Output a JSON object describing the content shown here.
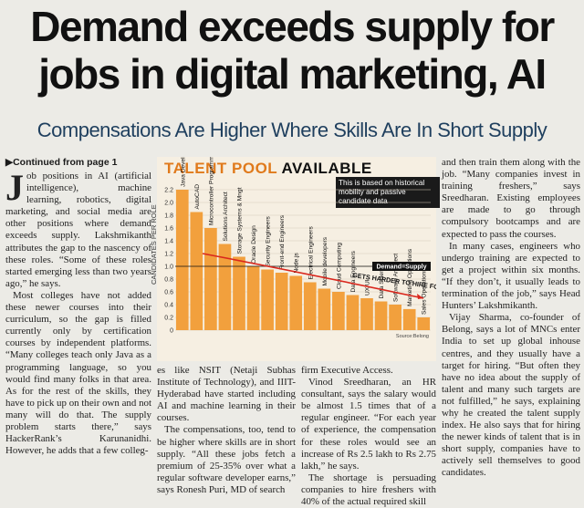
{
  "headline": {
    "line1": "Demand exceeds supply for",
    "line2": "jobs in digital marketing, AI"
  },
  "subhead": "Compensations Are Higher Where Skills Are In Short Supply",
  "continued": "▶Continued from page 1",
  "col1": {
    "dropcap": "J",
    "p1": "ob positions in AI (artificial intelligence), machine learning, robotics, digital marketing, and social media are other positions where demand exceeds supply. Lakshmikanth attributes the gap to the nascency of these roles. “Some of these roles started emerging less than two years ago,” he says.",
    "p2": "Most colleges have not added these newer courses into their curriculum, so the gap is filled currently only by certification courses by independent platforms. “Many colleges teach only Java as a programming language, so you would find many folks in that area. As for the rest of the skills, they have to pick up on their own and not many will do that. The supply problem starts there,” says HackerRank’s Karunanidhi. However, he adds that a few colleg-"
  },
  "col2": {
    "p1": "es like NSIT (Netaji Subhas Institute of Technology), and IIIT- Hyderabad have started including AI and machine learning in their courses.",
    "p2": "The compensations, too, tend to be higher where skills are in short supply. “All these jobs fetch a premium of 25-35% over what a regular software developer earns,” says Ronesh Puri, MD of search"
  },
  "col3": {
    "p1": "firm Executive Access.",
    "p2": "Vinod Sreedharan, an HR consultant, says the salary would be almost 1.5 times that of a regular engineer. “For each year of experience, the compensation for these roles would see an increase of Rs 2.5 lakh to Rs 2.75 lakh,” he says.",
    "p3": "The shortage is persuading companies to hire freshers with 40% of the actual required skill"
  },
  "col4": {
    "p1": "and then train them along with the job. “Many companies invest in training freshers,” says Sreedharan. Existing employees are made to go through compulsory bootcamps and are expected to pass the courses.",
    "p2": "In many cases, engineers who undergo training are expected to get a project within six months. “If they don’t, it usually leads to termination of the job,” says Head Hunters’ Lakshmikanth.",
    "p3": "Vijay Sharma, co-founder of Belong, says a lot of MNCs enter India to set up global inhouse centres, and they usually have a target for hiring. “But often they have no idea about the supply of talent and many such targets are not fulfilled,” he says, explaining why he created the talent supply index. He also says that for hiring the newer kinds of talent that is in short supply, companies have to actively sell themselves to good candidates."
  },
  "chart_data": {
    "type": "bar",
    "title_part1": "TALENT POOL",
    "title_part2": "AVAILABLE",
    "note": "This is based on historical mobility and passive candidate data",
    "ylabel": "CANDIDATES PER ROLE",
    "legend": "Demand=Supply",
    "annotation": "GETS HARDER TO HIRE FOR",
    "source": "Source:Belong",
    "ylim": [
      0,
      2.2
    ],
    "yticks": [
      "0",
      "0.2",
      "0.4",
      "0.6",
      "0.8",
      "1.0",
      "1.2",
      "1.4",
      "1.6",
      "1.8",
      "2.0",
      "2.2"
    ],
    "categories": [
      "Java Developer",
      "AutoCAD",
      "Microcontroller Programming",
      "Solutions Architect",
      "Storage Systems & Mngt",
      "Oracle Design",
      "Security Engineers",
      "Front-end Engineers",
      "Node.js",
      "Electrical Engineers",
      "Mobile developers",
      "Cloud Computing",
      "Data Engineers",
      "UX/UI",
      "Data Scientist",
      "Software Architect",
      "Marketing Operations",
      "Sales Operations"
    ],
    "values": [
      2.2,
      1.85,
      1.6,
      1.35,
      1.15,
      1.0,
      0.95,
      0.9,
      0.85,
      0.75,
      0.65,
      0.6,
      0.55,
      0.5,
      0.45,
      0.4,
      0.33,
      0.2
    ],
    "colors": {
      "bar": "#f2a03d",
      "title_accent": "#e07a1c",
      "trend": "#d9271d"
    }
  }
}
